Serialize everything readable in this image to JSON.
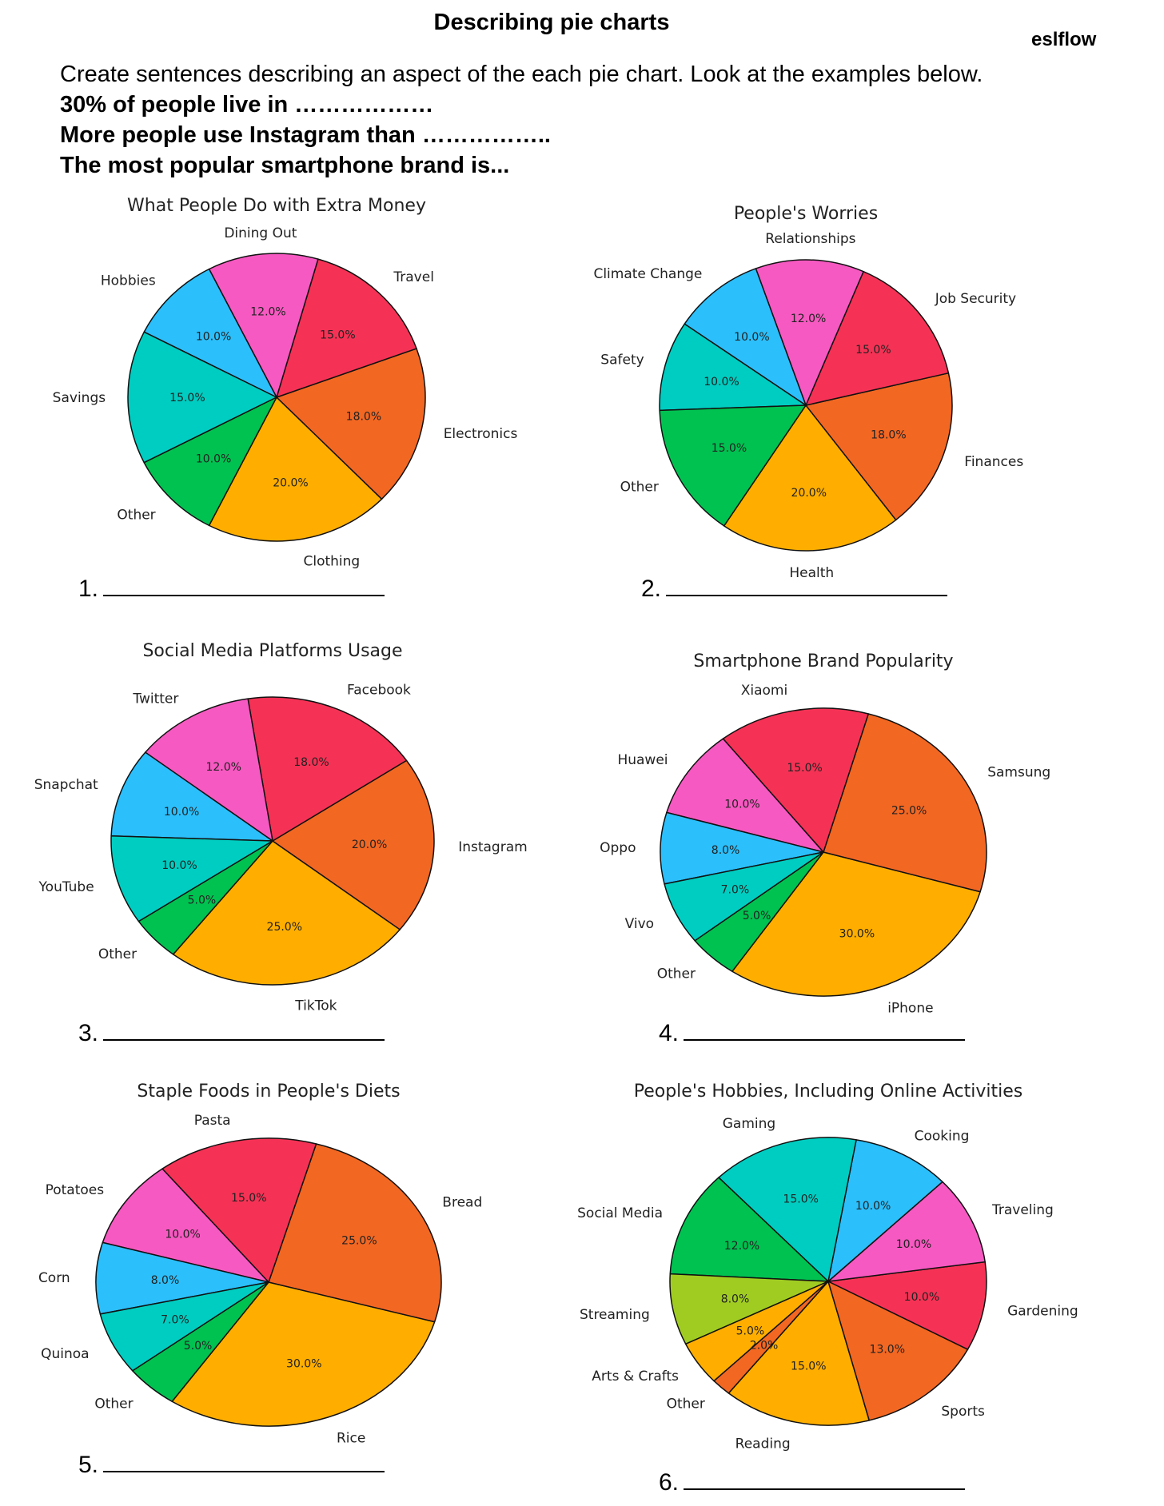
{
  "header": {
    "title": "Describing pie charts",
    "brand": "eslflow",
    "instruction": "Create  sentences describing an aspect of the each pie chart. Look at the examples below.",
    "examples": [
      "30% of people live in ………………",
      "More people use Instagram than ……………..",
      "The most popular smartphone brand is..."
    ]
  },
  "answers": [
    "1.",
    "2.",
    "3.",
    "4.",
    "5.",
    "6."
  ],
  "chart_data": [
    {
      "type": "pie",
      "title": "What People Do with Extra Money",
      "slices": [
        {
          "label": "Clothing",
          "value": 20.0,
          "pct": "20.0%",
          "color": "#FFAE00"
        },
        {
          "label": "Electronics",
          "value": 18.0,
          "pct": "18.0%",
          "color": "#F26722"
        },
        {
          "label": "Travel",
          "value": 15.0,
          "pct": "15.0%",
          "color": "#F53255"
        },
        {
          "label": "Dining Out",
          "value": 12.0,
          "pct": "12.0%",
          "color": "#F659C1"
        },
        {
          "label": "Hobbies",
          "value": 10.0,
          "pct": "10.0%",
          "color": "#2BBFFB"
        },
        {
          "label": "Savings",
          "value": 15.0,
          "pct": "15.0%",
          "color": "#00CDC1"
        },
        {
          "label": "Other",
          "value": 10.0,
          "pct": "10.0%",
          "color": "#00C251"
        }
      ]
    },
    {
      "type": "pie",
      "title": "People's Worries",
      "slices": [
        {
          "label": "Health",
          "value": 20.0,
          "pct": "20.0%",
          "color": "#FFAE00"
        },
        {
          "label": "Finances",
          "value": 18.0,
          "pct": "18.0%",
          "color": "#F26722"
        },
        {
          "label": "Job Security",
          "value": 15.0,
          "pct": "15.0%",
          "color": "#F53255"
        },
        {
          "label": "Relationships",
          "value": 12.0,
          "pct": "12.0%",
          "color": "#F659C1"
        },
        {
          "label": "Climate Change",
          "value": 10.0,
          "pct": "10.0%",
          "color": "#2BBFFB"
        },
        {
          "label": "Safety",
          "value": 10.0,
          "pct": "10.0%",
          "color": "#00CDC1"
        },
        {
          "label": "Other",
          "value": 15.0,
          "pct": "15.0%",
          "color": "#00C251"
        }
      ]
    },
    {
      "type": "pie",
      "title": "Social Media Platforms Usage",
      "slices": [
        {
          "label": "TikTok",
          "value": 25.0,
          "pct": "25.0%",
          "color": "#FFAE00"
        },
        {
          "label": "Instagram",
          "value": 20.0,
          "pct": "20.0%",
          "color": "#F26722"
        },
        {
          "label": "Facebook",
          "value": 18.0,
          "pct": "18.0%",
          "color": "#F53255"
        },
        {
          "label": "Twitter",
          "value": 12.0,
          "pct": "12.0%",
          "color": "#F659C1"
        },
        {
          "label": "Snapchat",
          "value": 10.0,
          "pct": "10.0%",
          "color": "#2BBFFB"
        },
        {
          "label": "YouTube",
          "value": 10.0,
          "pct": "10.0%",
          "color": "#00CDC1"
        },
        {
          "label": "Other",
          "value": 5.0,
          "pct": "5.0%",
          "color": "#00C251"
        }
      ]
    },
    {
      "type": "pie",
      "title": "Smartphone Brand Popularity",
      "slices": [
        {
          "label": "iPhone",
          "value": 30.0,
          "pct": "30.0%",
          "color": "#FFAE00"
        },
        {
          "label": "Samsung",
          "value": 25.0,
          "pct": "25.0%",
          "color": "#F26722"
        },
        {
          "label": "Xiaomi",
          "value": 15.0,
          "pct": "15.0%",
          "color": "#F53255"
        },
        {
          "label": "Huawei",
          "value": 10.0,
          "pct": "10.0%",
          "color": "#F659C1"
        },
        {
          "label": "Oppo",
          "value": 8.0,
          "pct": "8.0%",
          "color": "#2BBFFB"
        },
        {
          "label": "Vivo",
          "value": 7.0,
          "pct": "7.0%",
          "color": "#00CDC1"
        },
        {
          "label": "Other",
          "value": 5.0,
          "pct": "5.0%",
          "color": "#00C251"
        }
      ]
    },
    {
      "type": "pie",
      "title": "Staple Foods in People's Diets",
      "slices": [
        {
          "label": "Rice",
          "value": 30.0,
          "pct": "30.0%",
          "color": "#FFAE00"
        },
        {
          "label": "Bread",
          "value": 25.0,
          "pct": "25.0%",
          "color": "#F26722"
        },
        {
          "label": "Pasta",
          "value": 15.0,
          "pct": "15.0%",
          "color": "#F53255"
        },
        {
          "label": "Potatoes",
          "value": 10.0,
          "pct": "10.0%",
          "color": "#F659C1"
        },
        {
          "label": "Corn",
          "value": 8.0,
          "pct": "8.0%",
          "color": "#2BBFFB"
        },
        {
          "label": "Quinoa",
          "value": 7.0,
          "pct": "7.0%",
          "color": "#00CDC1"
        },
        {
          "label": "Other",
          "value": 5.0,
          "pct": "5.0%",
          "color": "#00C251"
        }
      ]
    },
    {
      "type": "pie",
      "title": "People's Hobbies, Including Online Activities",
      "slices": [
        {
          "label": "Reading",
          "value": 15.0,
          "pct": "15.0%",
          "color": "#FFAE00"
        },
        {
          "label": "Sports",
          "value": 13.0,
          "pct": "13.0%",
          "color": "#F26722"
        },
        {
          "label": "Gardening",
          "value": 10.0,
          "pct": "10.0%",
          "color": "#F53255"
        },
        {
          "label": "Traveling",
          "value": 10.0,
          "pct": "10.0%",
          "color": "#F659C1"
        },
        {
          "label": "Cooking",
          "value": 10.0,
          "pct": "10.0%",
          "color": "#2BBFFB"
        },
        {
          "label": "Gaming",
          "value": 15.0,
          "pct": "15.0%",
          "color": "#00CDC1"
        },
        {
          "label": "Social Media",
          "value": 12.0,
          "pct": "12.0%",
          "color": "#00C251"
        },
        {
          "label": "Streaming",
          "value": 8.0,
          "pct": "8.0%",
          "color": "#A0CC22"
        },
        {
          "label": "Arts & Crafts",
          "value": 5.0,
          "pct": "5.0%",
          "color": "#FFAE00"
        },
        {
          "label": "Other",
          "value": 2.0,
          "pct": "2.0%",
          "color": "#F26722"
        }
      ]
    }
  ]
}
